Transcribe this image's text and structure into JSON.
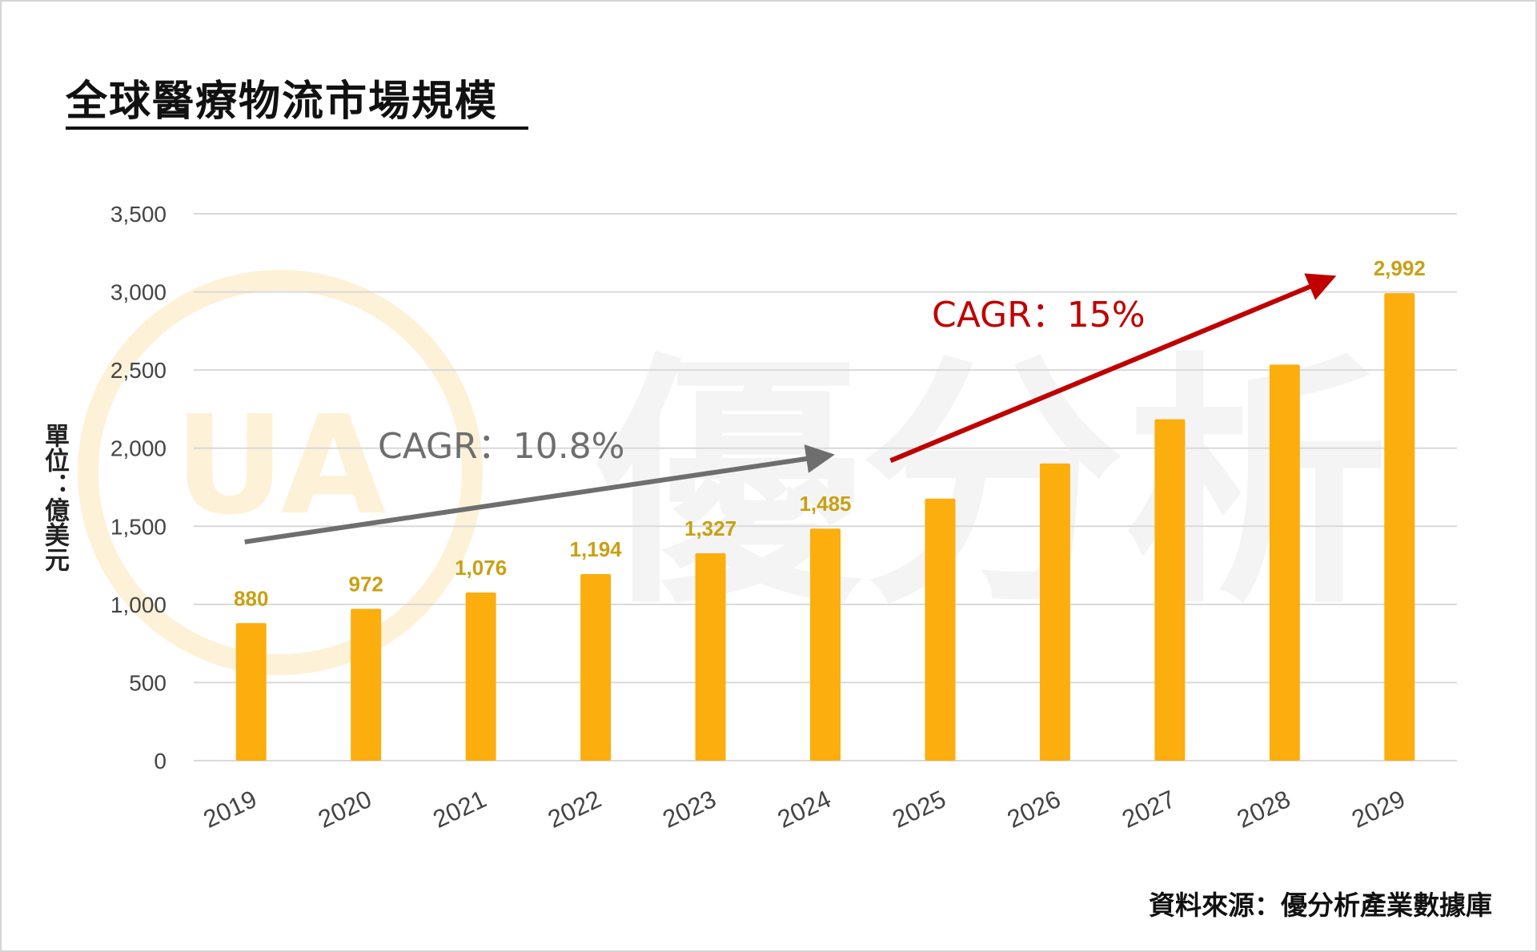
{
  "title": "全球醫療物流市場規模",
  "ylabel": "單位：億美元",
  "source": "資料來源：優分析產業數據庫",
  "watermark": "優分析",
  "colors": {
    "bar": "#fcae0e",
    "data_label": "#c9a012",
    "grid": "#d9d9d9",
    "cagr1": "#6e6e6e",
    "cagr2": "#c00000"
  },
  "chart_data": {
    "type": "bar",
    "categories": [
      "2019",
      "2020",
      "2021",
      "2022",
      "2023",
      "2024",
      "2025",
      "2026",
      "2027",
      "2028",
      "2029"
    ],
    "values": [
      880,
      972,
      1076,
      1194,
      1327,
      1485,
      1677,
      1902,
      2185,
      2535,
      2992
    ],
    "data_labels": [
      "880",
      "972",
      "1,076",
      "1,194",
      "1,327",
      "1,485",
      "",
      "",
      "",
      "",
      "2,992"
    ],
    "yticks": [
      "0",
      "500",
      "1,000",
      "1,500",
      "2,000",
      "2,500",
      "3,000",
      "3,500"
    ],
    "ylim": [
      0,
      3500
    ],
    "grid": true,
    "annotations": [
      {
        "text": "CAGR：10.8%",
        "from": {
          "x": "2019",
          "y": 1400
        },
        "to": {
          "x": "2024",
          "y": 1950
        }
      },
      {
        "text": "CAGR：15%",
        "from": {
          "x": "2025",
          "y": 1920
        },
        "to": {
          "x": "2029",
          "y": 3080
        }
      }
    ]
  }
}
